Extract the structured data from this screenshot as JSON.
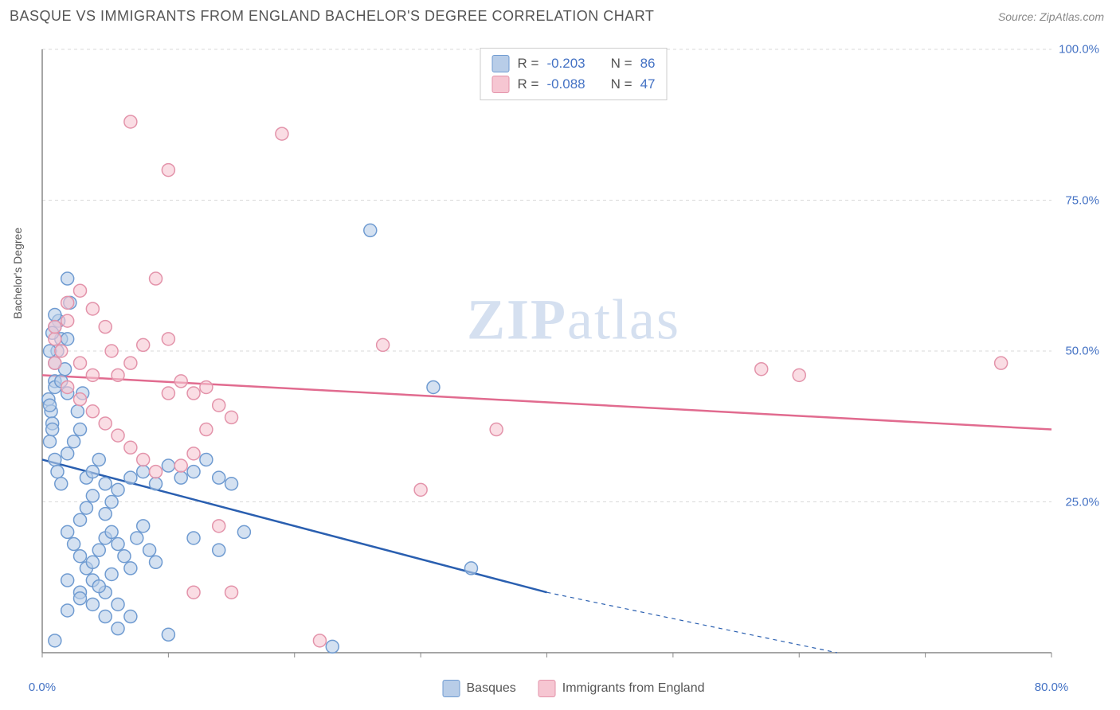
{
  "header": {
    "title": "BASQUE VS IMMIGRANTS FROM ENGLAND BACHELOR'S DEGREE CORRELATION CHART",
    "source": "Source: ZipAtlas.com"
  },
  "watermark": {
    "part1": "ZIP",
    "part2": "atlas"
  },
  "chart": {
    "type": "scatter",
    "background_color": "#ffffff",
    "grid_color": "#d9d9d9",
    "axis_color": "#888888",
    "y_axis_title": "Bachelor's Degree",
    "y_axis_title_fontsize": 14,
    "x_range": [
      0,
      80
    ],
    "y_range": [
      0,
      100
    ],
    "x_ticks": [
      0,
      10,
      20,
      30,
      40,
      50,
      60,
      70,
      80
    ],
    "x_tick_labels": {
      "0": "0.0%",
      "80": "80.0%"
    },
    "y_ticks": [
      0,
      25,
      50,
      75,
      100
    ],
    "y_tick_labels": {
      "25": "25.0%",
      "50": "50.0%",
      "75": "75.0%",
      "100": "100.0%"
    },
    "tick_label_color": "#4472c4",
    "tick_label_fontsize": 15,
    "marker_radius": 8,
    "marker_stroke_width": 1.5,
    "series": [
      {
        "name": "Basques",
        "fill_color": "#b8cde8",
        "fill_opacity": 0.6,
        "stroke_color": "#6f9bd1",
        "trend_color": "#2a5fb0",
        "trend_width": 2.5,
        "trend_start": [
          0,
          32
        ],
        "trend_solid_end": [
          40,
          10
        ],
        "trend_dash_end": [
          63,
          -2
        ],
        "R": "-0.203",
        "N": "86",
        "points": [
          [
            0.5,
            42
          ],
          [
            0.7,
            40
          ],
          [
            0.8,
            38
          ],
          [
            0.6,
            35
          ],
          [
            1,
            45
          ],
          [
            1,
            48
          ],
          [
            1.2,
            50
          ],
          [
            1.5,
            52
          ],
          [
            1.3,
            55
          ],
          [
            2,
            62
          ],
          [
            2.2,
            58
          ],
          [
            1.8,
            47
          ],
          [
            1,
            44
          ],
          [
            0.6,
            41
          ],
          [
            0.8,
            37
          ],
          [
            1,
            32
          ],
          [
            1.2,
            30
          ],
          [
            1.5,
            28
          ],
          [
            2,
            33
          ],
          [
            2.5,
            35
          ],
          [
            3,
            37
          ],
          [
            2.8,
            40
          ],
          [
            3.2,
            43
          ],
          [
            3.5,
            29
          ],
          [
            4,
            30
          ],
          [
            4.5,
            32
          ],
          [
            5,
            28
          ],
          [
            2,
            20
          ],
          [
            2.5,
            18
          ],
          [
            3,
            16
          ],
          [
            3.5,
            14
          ],
          [
            4,
            15
          ],
          [
            4.5,
            17
          ],
          [
            5,
            19
          ],
          [
            5.5,
            20
          ],
          [
            6,
            18
          ],
          [
            6.5,
            16
          ],
          [
            7,
            14
          ],
          [
            7.5,
            19
          ],
          [
            8,
            21
          ],
          [
            8.5,
            17
          ],
          [
            9,
            15
          ],
          [
            3,
            22
          ],
          [
            3.5,
            24
          ],
          [
            4,
            26
          ],
          [
            5,
            23
          ],
          [
            5.5,
            25
          ],
          [
            6,
            27
          ],
          [
            7,
            29
          ],
          [
            8,
            30
          ],
          [
            9,
            28
          ],
          [
            10,
            31
          ],
          [
            11,
            29
          ],
          [
            12,
            30
          ],
          [
            13,
            32
          ],
          [
            14,
            29
          ],
          [
            15,
            28
          ],
          [
            16,
            20
          ],
          [
            2,
            12
          ],
          [
            3,
            10
          ],
          [
            4,
            8
          ],
          [
            5,
            6
          ],
          [
            6,
            4
          ],
          [
            1,
            2
          ],
          [
            10,
            3
          ],
          [
            12,
            19
          ],
          [
            14,
            17
          ],
          [
            4,
            12
          ],
          [
            5,
            10
          ],
          [
            6,
            8
          ],
          [
            7,
            6
          ],
          [
            23,
            1
          ],
          [
            2,
            7
          ],
          [
            3,
            9
          ],
          [
            4.5,
            11
          ],
          [
            5.5,
            13
          ],
          [
            31,
            44
          ],
          [
            34,
            14
          ],
          [
            26,
            70
          ],
          [
            2,
            52
          ],
          [
            1,
            54
          ],
          [
            1,
            56
          ],
          [
            0.8,
            53
          ],
          [
            0.6,
            50
          ],
          [
            1.5,
            45
          ],
          [
            2,
            43
          ]
        ]
      },
      {
        "name": "Immigrants from England",
        "fill_color": "#f6c6d2",
        "fill_opacity": 0.6,
        "stroke_color": "#e393aa",
        "trend_color": "#e16b8f",
        "trend_width": 2.5,
        "trend_start": [
          0,
          46
        ],
        "trend_solid_end": [
          80,
          37
        ],
        "trend_dash_end": null,
        "R": "-0.088",
        "N": "47",
        "points": [
          [
            1,
            52
          ],
          [
            1,
            54
          ],
          [
            1,
            48
          ],
          [
            1.5,
            50
          ],
          [
            2,
            55
          ],
          [
            2,
            58
          ],
          [
            3,
            60
          ],
          [
            4,
            57
          ],
          [
            5,
            54
          ],
          [
            5.5,
            50
          ],
          [
            6,
            46
          ],
          [
            7,
            48
          ],
          [
            8,
            51
          ],
          [
            9,
            62
          ],
          [
            10,
            52
          ],
          [
            10,
            80
          ],
          [
            12,
            43
          ],
          [
            11,
            45
          ],
          [
            13,
            44
          ],
          [
            14,
            41
          ],
          [
            2,
            44
          ],
          [
            3,
            42
          ],
          [
            4,
            40
          ],
          [
            5,
            38
          ],
          [
            6,
            36
          ],
          [
            7,
            34
          ],
          [
            8,
            32
          ],
          [
            9,
            30
          ],
          [
            10,
            43
          ],
          [
            15,
            39
          ],
          [
            27,
            51
          ],
          [
            19,
            86
          ],
          [
            7,
            88
          ],
          [
            30,
            27
          ],
          [
            36,
            37
          ],
          [
            57,
            47
          ],
          [
            60,
            46
          ],
          [
            76,
            48
          ],
          [
            3,
            48
          ],
          [
            4,
            46
          ],
          [
            13,
            37
          ],
          [
            12,
            10
          ],
          [
            14,
            21
          ],
          [
            15,
            10
          ],
          [
            22,
            2
          ],
          [
            12,
            33
          ],
          [
            11,
            31
          ]
        ]
      }
    ],
    "stats_legend": {
      "border_color": "#cccccc",
      "fontsize": 17,
      "label_R": "R =",
      "label_N": "N ="
    },
    "bottom_legend": {
      "fontsize": 16
    }
  }
}
